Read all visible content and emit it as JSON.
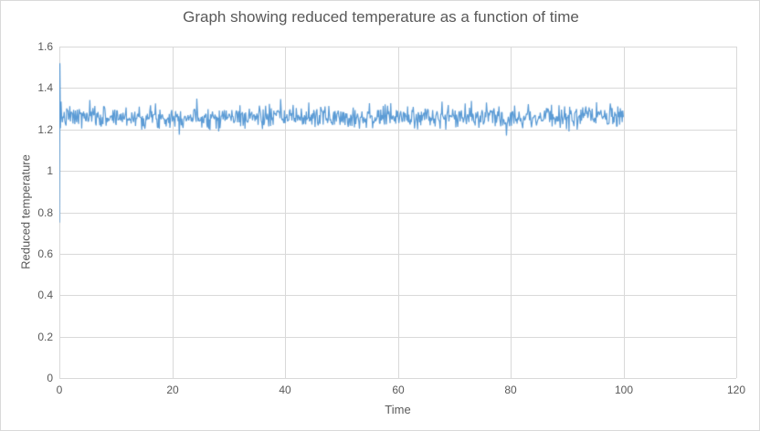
{
  "chart": {
    "title": "Graph showing reduced temperature as a function of time",
    "x_axis": {
      "title": "Time",
      "min": 0,
      "max": 120,
      "tick_interval": 20,
      "tick_values": [
        0,
        20,
        40,
        60,
        80,
        100,
        120
      ],
      "tick_labels": [
        "0",
        "20",
        "40",
        "60",
        "80",
        "100",
        "120"
      ]
    },
    "y_axis": {
      "title": "Reduced temperature",
      "min": 0,
      "max": 1.6,
      "tick_interval": 0.2,
      "tick_values": [
        0,
        0.2,
        0.4,
        0.6,
        0.8,
        1,
        1.2,
        1.4,
        1.6
      ],
      "tick_labels": [
        "0",
        "0.2",
        "0.4",
        "0.6",
        "0.8",
        "1",
        "1.2",
        "1.4",
        "1.6"
      ]
    },
    "colors": {
      "series": "#5B9BD5",
      "gridline": "#D9D9D9",
      "border": "#D9D9D9",
      "text": "#595959",
      "background": "#FFFFFF"
    }
  },
  "chart_data": {
    "type": "line",
    "title": "Graph showing reduced temperature as a function of time",
    "xlabel": "Time",
    "ylabel": "Reduced temperature",
    "xlim": [
      0,
      120
    ],
    "ylim": [
      0,
      1.6
    ],
    "grid": true,
    "legend": false,
    "series": [
      {
        "name": "reduced-temperature",
        "x_start": 0,
        "x_end": 100,
        "n_points": 900,
        "initial_transient": {
          "x": 0,
          "y_low": 0.75,
          "y_high": 1.52
        },
        "steady_state": {
          "mean": 1.26,
          "std": 0.027,
          "clamp_min": 1.17,
          "clamp_max": 1.36
        },
        "seed": 7
      }
    ]
  }
}
